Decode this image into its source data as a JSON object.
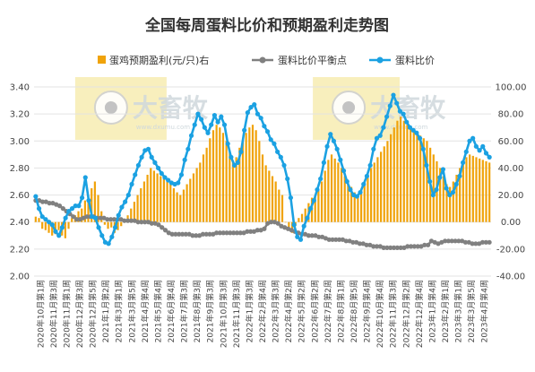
{
  "chart_data": {
    "type": "bar+line",
    "title": "全国每周蛋料比价和预期盈利走势图",
    "watermark": "大畜牧",
    "watermark_url": "www.dxumu.com",
    "legend_position": "top",
    "legend": [
      {
        "name": "蛋鸡预期盈利(元/只)右",
        "color": "#f0a30a",
        "kind": "bar"
      },
      {
        "name": "蛋料比价平衡点",
        "color": "#808080",
        "kind": "line"
      },
      {
        "name": "蛋料比价",
        "color": "#1ba1e2",
        "kind": "line"
      }
    ],
    "y_left": {
      "min": 2.0,
      "max": 3.4,
      "ticks": [
        "2.00",
        "2.20",
        "2.40",
        "2.60",
        "2.80",
        "3.00",
        "3.20",
        "3.40"
      ]
    },
    "y_right": {
      "min": -40,
      "max": 100,
      "ticks": [
        "-40.00",
        "-20.00",
        "0.00",
        "20.00",
        "40.00",
        "60.00",
        "80.00",
        "100.00"
      ]
    },
    "x_tick_labels": [
      "2020年10月第1周",
      "2020年11月第3周",
      "2020年11月第1周",
      "2020年12月第3周",
      "2020年12月第5周",
      "2021年1月第2周",
      "2021年3月第1周",
      "2021年3月第5周",
      "2021年4月第4周",
      "2021年5月第4周",
      "2021年6月第4周",
      "2021年7月第3周",
      "2021年8月第3周",
      "2021年9月第3周",
      "2021年10月第3周",
      "2021年11月第3周",
      "2022年1月第3周",
      "2022年2月第4周",
      "2022年3月第3周",
      "2022年4月第2周",
      "2022年5月第2周",
      "2022年6月第2周",
      "2022年7月第2周",
      "2022年8月第1周",
      "2022年8月第5周",
      "2022年9月第4周",
      "2022年10月第4周",
      "2022年11月第3周",
      "2022年12月第2周",
      "2022年12月第4周",
      "2023年1月第4周",
      "2023年2月第1周",
      "2023年3月第1周",
      "2023年3月第5周",
      "2023年4月第4周"
    ],
    "grid": true,
    "highlight_bands_x": [
      [
        0.09,
        0.29
      ],
      [
        0.61,
        0.8
      ]
    ],
    "series": [
      {
        "name": "蛋鸡预期盈利(元/只)右",
        "axis": "right",
        "values": [
          4,
          3,
          -5,
          -6,
          -8,
          -10,
          -9,
          -6,
          -10,
          -12,
          -5,
          3,
          5,
          8,
          10,
          16,
          20,
          25,
          30,
          20,
          8,
          -2,
          -5,
          -4,
          -8,
          -6,
          -3,
          2,
          5,
          10,
          15,
          20,
          25,
          30,
          35,
          40,
          38,
          36,
          34,
          32,
          30,
          28,
          25,
          22,
          20,
          24,
          28,
          32,
          36,
          40,
          44,
          50,
          55,
          62,
          68,
          72,
          70,
          66,
          60,
          52,
          45,
          48,
          55,
          60,
          66,
          70,
          72,
          68,
          60,
          50,
          42,
          38,
          34,
          30,
          24,
          20,
          0,
          -6,
          -8,
          -3,
          3,
          6,
          10,
          14,
          18,
          20,
          24,
          30,
          38,
          46,
          50,
          47,
          44,
          40,
          34,
          30,
          26,
          22,
          20,
          24,
          30,
          36,
          40,
          44,
          48,
          52,
          56,
          60,
          65,
          70,
          75,
          78,
          75,
          72,
          70,
          68,
          66,
          64,
          62,
          60,
          55,
          50,
          45,
          40,
          34,
          28,
          26,
          30,
          35,
          40,
          44,
          48,
          50,
          49,
          48,
          47,
          46,
          45,
          44
        ]
      },
      {
        "name": "蛋料比价平衡点",
        "axis": "left",
        "values": [
          2.56,
          2.56,
          2.55,
          2.55,
          2.54,
          2.54,
          2.53,
          2.52,
          2.5,
          2.48,
          2.46,
          2.44,
          2.42,
          2.42,
          2.43,
          2.44,
          2.44,
          2.44,
          2.43,
          2.43,
          2.43,
          2.42,
          2.42,
          2.42,
          2.42,
          2.42,
          2.41,
          2.41,
          2.41,
          2.41,
          2.4,
          2.4,
          2.4,
          2.4,
          2.39,
          2.39,
          2.38,
          2.36,
          2.34,
          2.32,
          2.31,
          2.31,
          2.31,
          2.31,
          2.31,
          2.31,
          2.3,
          2.3,
          2.3,
          2.31,
          2.31,
          2.31,
          2.31,
          2.32,
          2.32,
          2.32,
          2.32,
          2.32,
          2.32,
          2.32,
          2.32,
          2.32,
          2.33,
          2.33,
          2.33,
          2.34,
          2.34,
          2.35,
          2.39,
          2.4,
          2.4,
          2.39,
          2.37,
          2.36,
          2.35,
          2.34,
          2.33,
          2.32,
          2.31,
          2.31,
          2.3,
          2.3,
          2.3,
          2.29,
          2.29,
          2.28,
          2.27,
          2.27,
          2.27,
          2.27,
          2.27,
          2.26,
          2.26,
          2.25,
          2.25,
          2.24,
          2.24,
          2.23,
          2.23,
          2.22,
          2.22,
          2.22,
          2.21,
          2.21,
          2.21,
          2.21,
          2.21,
          2.21,
          2.21,
          2.22,
          2.22,
          2.22,
          2.22,
          2.22,
          2.23,
          2.23,
          2.26,
          2.25,
          2.24,
          2.25,
          2.26,
          2.26,
          2.26,
          2.26,
          2.26,
          2.26,
          2.25,
          2.25,
          2.24,
          2.24,
          2.24,
          2.25,
          2.25,
          2.25
        ]
      },
      {
        "name": "蛋料比价",
        "axis": "left",
        "values": [
          2.59,
          2.5,
          2.44,
          2.42,
          2.4,
          2.38,
          2.33,
          2.3,
          2.36,
          2.43,
          2.48,
          2.5,
          2.52,
          2.52,
          2.58,
          2.73,
          2.56,
          2.44,
          2.43,
          2.36,
          2.3,
          2.25,
          2.24,
          2.29,
          2.36,
          2.45,
          2.51,
          2.55,
          2.6,
          2.68,
          2.75,
          2.82,
          2.88,
          2.93,
          2.94,
          2.88,
          2.84,
          2.8,
          2.76,
          2.73,
          2.71,
          2.69,
          2.68,
          2.69,
          2.75,
          2.86,
          2.94,
          3.04,
          3.12,
          3.2,
          3.16,
          3.1,
          3.06,
          3.12,
          3.19,
          3.14,
          3.18,
          3.12,
          2.98,
          2.88,
          2.82,
          2.84,
          2.92,
          3.08,
          3.21,
          3.25,
          3.27,
          3.2,
          3.17,
          3.11,
          3.07,
          3.01,
          2.98,
          2.92,
          2.88,
          2.82,
          2.72,
          2.58,
          2.38,
          2.29,
          2.27,
          2.37,
          2.43,
          2.5,
          2.56,
          2.64,
          2.72,
          2.84,
          2.96,
          3.05,
          3.0,
          2.94,
          2.86,
          2.78,
          2.7,
          2.64,
          2.6,
          2.59,
          2.62,
          2.68,
          2.74,
          2.82,
          2.94,
          3.02,
          3.04,
          3.1,
          3.18,
          3.26,
          3.34,
          3.28,
          3.22,
          3.2,
          3.14,
          3.1,
          3.08,
          3.06,
          3.02,
          2.94,
          2.82,
          2.7,
          2.6,
          2.64,
          2.73,
          2.79,
          2.65,
          2.6,
          2.62,
          2.68,
          2.74,
          2.84,
          2.92,
          3.0,
          3.02,
          2.96,
          2.93,
          2.96,
          2.91,
          2.88
        ]
      }
    ]
  }
}
